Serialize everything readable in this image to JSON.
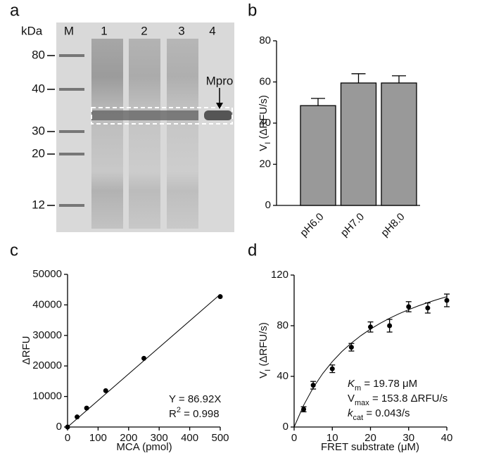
{
  "panel_labels": [
    "a",
    "b",
    "c",
    "d"
  ],
  "gel": {
    "units": "kDa",
    "lanes": [
      "M",
      "1",
      "2",
      "3",
      "4"
    ],
    "markers": [
      "80",
      "40",
      "30",
      "20",
      "12"
    ],
    "annotation": "Mpro"
  },
  "chart_data": [
    {
      "type": "bar",
      "categories": [
        "pH6.0",
        "pH7.0",
        "pH8.0"
      ],
      "values": [
        48.5,
        59.5,
        59.5
      ],
      "errors": [
        3.5,
        4.5,
        3.5
      ],
      "color": "#999999",
      "ylim": [
        0,
        80
      ],
      "yticks": [
        0,
        20,
        40,
        60,
        80
      ],
      "ylabel": {
        "main": "V",
        "sub": "I",
        "rest": " (ΔRFU/s)"
      }
    },
    {
      "type": "scatter",
      "x": [
        0,
        31.25,
        62.5,
        125,
        250,
        500
      ],
      "values": [
        0,
        3300,
        6200,
        11900,
        22500,
        42700
      ],
      "color": "#000000",
      "line": {
        "x": [
          0,
          500
        ],
        "values": [
          0,
          43460
        ]
      },
      "xlim": [
        0,
        500
      ],
      "xticks": [
        0,
        100,
        200,
        300,
        400,
        500
      ],
      "ylim": [
        0,
        50000
      ],
      "yticks": [
        0,
        10000,
        20000,
        30000,
        40000,
        50000
      ],
      "xlabel": "MCA (pmol)",
      "ylabel": {
        "main": "ΔRFU"
      },
      "annotations": [
        {
          "main": "Y = 86.92X"
        },
        {
          "main": "R",
          "sup": "2",
          "rest": " = 0.998"
        }
      ]
    },
    {
      "type": "scatter",
      "x": [
        2.5,
        5,
        10,
        15,
        20,
        25,
        30,
        35,
        40
      ],
      "values": [
        14,
        33,
        46,
        63,
        79,
        80,
        95,
        94,
        100
      ],
      "errors": [
        2,
        3,
        3,
        3,
        4,
        5,
        4,
        4,
        5
      ],
      "color": "#000000",
      "line": {
        "x": [
          0,
          2.5,
          5,
          7.5,
          10,
          12.5,
          15,
          17.5,
          20,
          22.5,
          25,
          27.5,
          30,
          32.5,
          35,
          37.5,
          40
        ],
        "values": [
          0,
          17.26,
          31.03,
          42.28,
          51.65,
          59.56,
          66.33,
          72.2,
          77.33,
          81.85,
          85.86,
          89.46,
          92.69,
          95.61,
          98.27,
          100.69,
          102.91
        ]
      },
      "xlim": [
        0,
        40
      ],
      "xticks": [
        0,
        10,
        20,
        30,
        40
      ],
      "ylim": [
        0,
        120
      ],
      "yticks": [
        0,
        40,
        80,
        120
      ],
      "xlabel": "FRET substrate (μM)",
      "ylabel": {
        "main": "V",
        "sub": "I",
        "rest": " (ΔRFU/s)"
      },
      "annotations": [
        {
          "main": "K",
          "sub": "m",
          "rest": " =  19.78 μM",
          "italic": true
        },
        {
          "main": "V",
          "sub": "max",
          "rest": " = 153.8 ΔRFU/s"
        },
        {
          "main": "k",
          "sub": "cat",
          "rest": " = 0.043/s",
          "italic": true
        }
      ]
    }
  ]
}
